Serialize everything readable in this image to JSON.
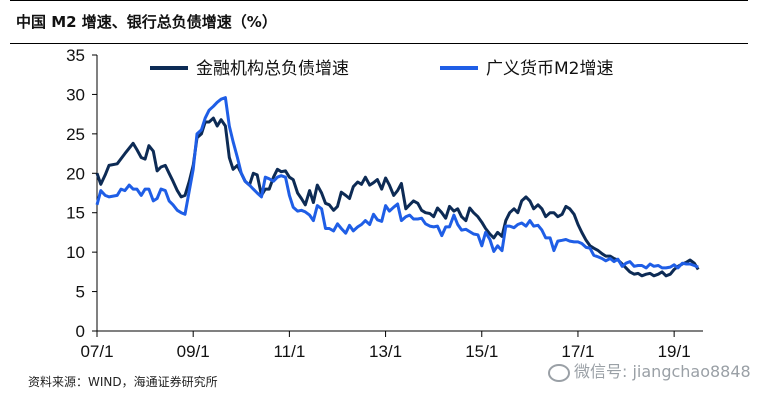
{
  "header": {
    "title": "中国 M2 增速、银行总负债增速（%）"
  },
  "footer": {
    "source": "资料来源：WIND，海通证券研究所"
  },
  "watermark": {
    "text": "微信号: jiangchao8848"
  },
  "chart_data": {
    "type": "line",
    "title": "中国 M2 增速、银行总负债增速（%）",
    "ylim": [
      0,
      35
    ],
    "yticks": [
      0,
      5,
      10,
      15,
      20,
      25,
      30,
      35
    ],
    "xlim": [
      2007.0,
      2019.6
    ],
    "xticks": [
      {
        "x": 2007.0,
        "label": "07/1"
      },
      {
        "x": 2009.0,
        "label": "09/1"
      },
      {
        "x": 2011.0,
        "label": "11/1"
      },
      {
        "x": 2013.0,
        "label": "13/1"
      },
      {
        "x": 2015.0,
        "label": "15/1"
      },
      {
        "x": 2017.0,
        "label": "17/1"
      },
      {
        "x": 2019.0,
        "label": "19/1"
      }
    ],
    "legend": "top",
    "grid": false,
    "series": [
      {
        "name": "金融机构总负债增速",
        "color": "#0d2b55",
        "points": [
          [
            2007.0,
            20.0
          ],
          [
            2007.08,
            18.6
          ],
          [
            2007.17,
            19.8
          ],
          [
            2007.25,
            21.0
          ],
          [
            2007.42,
            21.2
          ],
          [
            2007.58,
            22.5
          ],
          [
            2007.75,
            23.8
          ],
          [
            2007.83,
            23.0
          ],
          [
            2007.92,
            22.0
          ],
          [
            2008.0,
            21.8
          ],
          [
            2008.08,
            23.5
          ],
          [
            2008.17,
            22.8
          ],
          [
            2008.25,
            20.3
          ],
          [
            2008.33,
            20.8
          ],
          [
            2008.42,
            21.0
          ],
          [
            2008.5,
            20.0
          ],
          [
            2008.58,
            19.0
          ],
          [
            2008.67,
            17.8
          ],
          [
            2008.75,
            17.0
          ],
          [
            2008.83,
            17.2
          ],
          [
            2008.92,
            19.0
          ],
          [
            2009.0,
            21.0
          ],
          [
            2009.08,
            24.5
          ],
          [
            2009.17,
            25.0
          ],
          [
            2009.25,
            26.5
          ],
          [
            2009.33,
            26.5
          ],
          [
            2009.42,
            27.0
          ],
          [
            2009.5,
            26.0
          ],
          [
            2009.58,
            26.8
          ],
          [
            2009.67,
            26.0
          ],
          [
            2009.75,
            22.0
          ],
          [
            2009.83,
            20.5
          ],
          [
            2009.92,
            21.0
          ],
          [
            2010.0,
            20.0
          ],
          [
            2010.08,
            19.0
          ],
          [
            2010.17,
            18.5
          ],
          [
            2010.25,
            20.0
          ],
          [
            2010.33,
            19.8
          ],
          [
            2010.42,
            17.2
          ],
          [
            2010.5,
            18.0
          ],
          [
            2010.58,
            18.0
          ],
          [
            2010.67,
            19.5
          ],
          [
            2010.75,
            20.5
          ],
          [
            2010.83,
            20.2
          ],
          [
            2010.92,
            20.3
          ],
          [
            2011.0,
            19.5
          ],
          [
            2011.08,
            19.2
          ],
          [
            2011.17,
            17.5
          ],
          [
            2011.25,
            16.8
          ],
          [
            2011.33,
            16.0
          ],
          [
            2011.42,
            17.8
          ],
          [
            2011.5,
            16.3
          ],
          [
            2011.58,
            18.5
          ],
          [
            2011.67,
            17.5
          ],
          [
            2011.75,
            16.2
          ],
          [
            2011.83,
            16.0
          ],
          [
            2011.92,
            15.3
          ],
          [
            2012.0,
            15.8
          ],
          [
            2012.08,
            17.6
          ],
          [
            2012.17,
            17.2
          ],
          [
            2012.25,
            16.8
          ],
          [
            2012.33,
            18.3
          ],
          [
            2012.42,
            18.9
          ],
          [
            2012.5,
            18.6
          ],
          [
            2012.58,
            19.5
          ],
          [
            2012.67,
            18.5
          ],
          [
            2012.75,
            18.8
          ],
          [
            2012.83,
            19.2
          ],
          [
            2012.92,
            18.0
          ],
          [
            2013.0,
            19.4
          ],
          [
            2013.08,
            18.5
          ],
          [
            2013.17,
            17.2
          ],
          [
            2013.25,
            17.8
          ],
          [
            2013.33,
            18.7
          ],
          [
            2013.42,
            15.5
          ],
          [
            2013.5,
            16.0
          ],
          [
            2013.58,
            16.5
          ],
          [
            2013.67,
            16.2
          ],
          [
            2013.75,
            15.3
          ],
          [
            2013.83,
            15.0
          ],
          [
            2013.92,
            14.9
          ],
          [
            2014.0,
            14.5
          ],
          [
            2014.08,
            15.6
          ],
          [
            2014.17,
            15.0
          ],
          [
            2014.25,
            14.3
          ],
          [
            2014.33,
            15.8
          ],
          [
            2014.42,
            15.2
          ],
          [
            2014.5,
            15.5
          ],
          [
            2014.58,
            14.5
          ],
          [
            2014.67,
            14.0
          ],
          [
            2014.75,
            15.6
          ],
          [
            2014.83,
            15.0
          ],
          [
            2014.92,
            14.5
          ],
          [
            2015.0,
            13.8
          ],
          [
            2015.08,
            13.0
          ],
          [
            2015.17,
            12.3
          ],
          [
            2015.25,
            11.8
          ],
          [
            2015.33,
            12.5
          ],
          [
            2015.42,
            12.0
          ],
          [
            2015.5,
            14.0
          ],
          [
            2015.58,
            15.0
          ],
          [
            2015.67,
            15.5
          ],
          [
            2015.75,
            15.0
          ],
          [
            2015.83,
            16.5
          ],
          [
            2015.92,
            17.0
          ],
          [
            2016.0,
            16.5
          ],
          [
            2016.08,
            15.5
          ],
          [
            2016.17,
            16.0
          ],
          [
            2016.25,
            15.5
          ],
          [
            2016.33,
            14.5
          ],
          [
            2016.42,
            15.0
          ],
          [
            2016.5,
            15.0
          ],
          [
            2016.58,
            14.5
          ],
          [
            2016.67,
            14.8
          ],
          [
            2016.75,
            15.8
          ],
          [
            2016.83,
            15.5
          ],
          [
            2016.92,
            14.8
          ],
          [
            2017.0,
            13.5
          ],
          [
            2017.08,
            12.5
          ],
          [
            2017.17,
            11.5
          ],
          [
            2017.25,
            10.8
          ],
          [
            2017.33,
            10.5
          ],
          [
            2017.42,
            10.2
          ],
          [
            2017.5,
            9.8
          ],
          [
            2017.58,
            9.5
          ],
          [
            2017.67,
            9.5
          ],
          [
            2017.75,
            9.2
          ],
          [
            2017.83,
            9.0
          ],
          [
            2017.92,
            8.5
          ],
          [
            2018.0,
            8.0
          ],
          [
            2018.08,
            7.5
          ],
          [
            2018.17,
            7.2
          ],
          [
            2018.25,
            7.3
          ],
          [
            2018.33,
            7.0
          ],
          [
            2018.42,
            7.2
          ],
          [
            2018.5,
            7.3
          ],
          [
            2018.58,
            7.0
          ],
          [
            2018.67,
            7.2
          ],
          [
            2018.75,
            7.5
          ],
          [
            2018.83,
            7.0
          ],
          [
            2018.92,
            7.2
          ],
          [
            2019.0,
            7.8
          ],
          [
            2019.08,
            8.2
          ],
          [
            2019.17,
            8.5
          ],
          [
            2019.25,
            8.7
          ],
          [
            2019.33,
            9.0
          ],
          [
            2019.42,
            8.6
          ],
          [
            2019.5,
            7.8
          ]
        ]
      },
      {
        "name": "广义货币M2增速",
        "color": "#1f5ee6",
        "points": [
          [
            2007.0,
            16.0
          ],
          [
            2007.08,
            17.8
          ],
          [
            2007.17,
            17.2
          ],
          [
            2007.25,
            17.0
          ],
          [
            2007.42,
            17.2
          ],
          [
            2007.5,
            18.0
          ],
          [
            2007.58,
            17.8
          ],
          [
            2007.67,
            18.5
          ],
          [
            2007.75,
            18.0
          ],
          [
            2007.83,
            18.0
          ],
          [
            2007.92,
            17.2
          ],
          [
            2008.0,
            18.0
          ],
          [
            2008.08,
            18.0
          ],
          [
            2008.17,
            16.5
          ],
          [
            2008.25,
            16.8
          ],
          [
            2008.33,
            18.0
          ],
          [
            2008.42,
            17.8
          ],
          [
            2008.5,
            16.5
          ],
          [
            2008.58,
            16.0
          ],
          [
            2008.67,
            15.3
          ],
          [
            2008.75,
            15.0
          ],
          [
            2008.83,
            14.8
          ],
          [
            2008.92,
            17.8
          ],
          [
            2009.0,
            20.5
          ],
          [
            2009.08,
            25.0
          ],
          [
            2009.17,
            25.5
          ],
          [
            2009.25,
            27.0
          ],
          [
            2009.33,
            28.0
          ],
          [
            2009.42,
            28.5
          ],
          [
            2009.5,
            29.0
          ],
          [
            2009.58,
            29.4
          ],
          [
            2009.67,
            29.6
          ],
          [
            2009.75,
            26.0
          ],
          [
            2009.83,
            24.0
          ],
          [
            2009.92,
            22.0
          ],
          [
            2010.0,
            20.0
          ],
          [
            2010.08,
            19.0
          ],
          [
            2010.17,
            18.5
          ],
          [
            2010.25,
            18.0
          ],
          [
            2010.33,
            17.5
          ],
          [
            2010.42,
            17.0
          ],
          [
            2010.5,
            19.5
          ],
          [
            2010.58,
            19.3
          ],
          [
            2010.67,
            19.0
          ],
          [
            2010.75,
            19.5
          ],
          [
            2010.83,
            19.7
          ],
          [
            2010.92,
            19.5
          ],
          [
            2011.0,
            17.2
          ],
          [
            2011.08,
            15.7
          ],
          [
            2011.17,
            15.2
          ],
          [
            2011.25,
            15.3
          ],
          [
            2011.33,
            15.1
          ],
          [
            2011.42,
            14.7
          ],
          [
            2011.5,
            14.0
          ],
          [
            2011.58,
            15.9
          ],
          [
            2011.67,
            15.5
          ],
          [
            2011.75,
            13.0
          ],
          [
            2011.83,
            13.0
          ],
          [
            2011.92,
            12.7
          ],
          [
            2012.0,
            13.6
          ],
          [
            2012.08,
            13.0
          ],
          [
            2012.17,
            12.4
          ],
          [
            2012.25,
            13.4
          ],
          [
            2012.33,
            12.7
          ],
          [
            2012.42,
            13.2
          ],
          [
            2012.5,
            13.5
          ],
          [
            2012.58,
            14.0
          ],
          [
            2012.67,
            13.5
          ],
          [
            2012.75,
            14.8
          ],
          [
            2012.83,
            14.1
          ],
          [
            2012.92,
            13.9
          ],
          [
            2013.0,
            15.9
          ],
          [
            2013.08,
            15.2
          ],
          [
            2013.17,
            15.7
          ],
          [
            2013.25,
            16.1
          ],
          [
            2013.33,
            14.0
          ],
          [
            2013.42,
            14.5
          ],
          [
            2013.5,
            14.7
          ],
          [
            2013.58,
            14.2
          ],
          [
            2013.67,
            14.2
          ],
          [
            2013.75,
            14.3
          ],
          [
            2013.83,
            13.6
          ],
          [
            2013.92,
            13.3
          ],
          [
            2014.0,
            13.2
          ],
          [
            2014.08,
            13.3
          ],
          [
            2014.17,
            12.1
          ],
          [
            2014.25,
            13.2
          ],
          [
            2014.33,
            13.2
          ],
          [
            2014.42,
            14.7
          ],
          [
            2014.5,
            13.5
          ],
          [
            2014.58,
            12.8
          ],
          [
            2014.67,
            12.9
          ],
          [
            2014.75,
            12.6
          ],
          [
            2014.83,
            12.3
          ],
          [
            2014.92,
            12.2
          ],
          [
            2015.0,
            10.8
          ],
          [
            2015.08,
            12.5
          ],
          [
            2015.17,
            11.6
          ],
          [
            2015.25,
            10.1
          ],
          [
            2015.33,
            10.8
          ],
          [
            2015.42,
            10.2
          ],
          [
            2015.5,
            13.3
          ],
          [
            2015.58,
            13.3
          ],
          [
            2015.67,
            13.1
          ],
          [
            2015.75,
            13.5
          ],
          [
            2015.83,
            13.7
          ],
          [
            2015.92,
            13.3
          ],
          [
            2016.0,
            14.0
          ],
          [
            2016.08,
            13.3
          ],
          [
            2016.17,
            13.4
          ],
          [
            2016.25,
            12.8
          ],
          [
            2016.33,
            11.8
          ],
          [
            2016.42,
            11.8
          ],
          [
            2016.5,
            10.2
          ],
          [
            2016.58,
            11.4
          ],
          [
            2016.67,
            11.5
          ],
          [
            2016.75,
            11.6
          ],
          [
            2016.83,
            11.4
          ],
          [
            2016.92,
            11.3
          ],
          [
            2017.0,
            11.3
          ],
          [
            2017.08,
            11.1
          ],
          [
            2017.17,
            10.6
          ],
          [
            2017.25,
            10.5
          ],
          [
            2017.33,
            9.6
          ],
          [
            2017.42,
            9.4
          ],
          [
            2017.5,
            9.2
          ],
          [
            2017.58,
            8.9
          ],
          [
            2017.67,
            9.2
          ],
          [
            2017.75,
            8.8
          ],
          [
            2017.83,
            9.1
          ],
          [
            2017.92,
            8.2
          ],
          [
            2018.0,
            8.6
          ],
          [
            2018.08,
            8.8
          ],
          [
            2018.17,
            8.2
          ],
          [
            2018.25,
            8.3
          ],
          [
            2018.33,
            8.3
          ],
          [
            2018.42,
            8.0
          ],
          [
            2018.5,
            8.5
          ],
          [
            2018.58,
            8.2
          ],
          [
            2018.67,
            8.3
          ],
          [
            2018.75,
            8.0
          ],
          [
            2018.83,
            8.0
          ],
          [
            2018.92,
            8.1
          ],
          [
            2019.0,
            8.4
          ],
          [
            2019.08,
            8.0
          ],
          [
            2019.17,
            8.6
          ],
          [
            2019.25,
            8.5
          ],
          [
            2019.33,
            8.5
          ],
          [
            2019.42,
            8.3
          ],
          [
            2019.5,
            8.1
          ]
        ]
      }
    ]
  }
}
